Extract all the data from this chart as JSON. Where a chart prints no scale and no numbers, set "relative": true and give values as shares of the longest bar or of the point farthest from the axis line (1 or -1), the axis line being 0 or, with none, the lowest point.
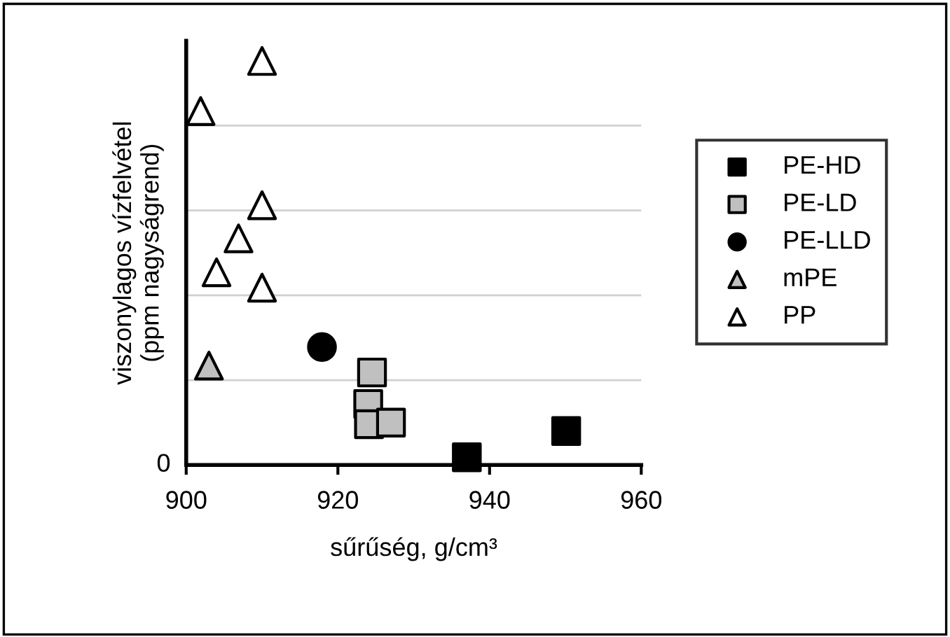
{
  "chart_data": {
    "type": "scatter",
    "relative": true,
    "xlabel": "sűrűség, g/cm³",
    "ylabel": "viszonylagos vízfelvétel\n(ppm nagyságrend)",
    "xlim": [
      900,
      960
    ],
    "xticks": [
      900,
      920,
      940,
      960
    ],
    "annotations": [
      "0"
    ],
    "grid": "y",
    "legend": "right",
    "series": [
      {
        "name": "PE-HD",
        "color": "#000000",
        "marker": "square",
        "x": [
          937.0,
          950.1
        ],
        "values": [
          0.019,
          0.084
        ]
      },
      {
        "name": "PE-LD",
        "color": "#c0c0c0",
        "marker": "square",
        "x": [
          924.5,
          924.0,
          924.1,
          927.0
        ],
        "values": [
          0.229,
          0.151,
          0.101,
          0.105
        ]
      },
      {
        "name": "PE-LLD",
        "color": "#000000",
        "marker": "circle",
        "x": [
          917.9
        ],
        "values": [
          0.292
        ]
      },
      {
        "name": "mPE",
        "color": "#c0c0c0",
        "marker": "triangle",
        "x": [
          903.0
        ],
        "values": [
          0.246
        ]
      },
      {
        "name": "PP",
        "color": "#ffffff",
        "marker": "triangle",
        "x": [
          910.0,
          901.9,
          910.0,
          906.9,
          904.0,
          910.0
        ],
        "values": [
          1,
          0.876,
          0.643,
          0.561,
          0.477,
          0.439
        ]
      }
    ]
  }
}
